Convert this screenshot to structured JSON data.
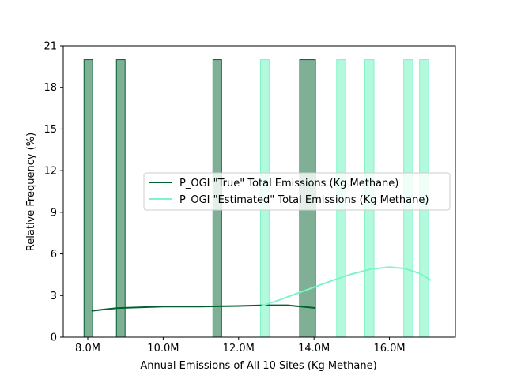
{
  "chart_data": {
    "type": "bar",
    "xlabel": "Annual Emissions of All 10 Sites (Kg Methane)",
    "ylabel": "Relative Frequency (%)",
    "xlim": [
      7.35,
      17.75
    ],
    "ylim": [
      0,
      21
    ],
    "x_ticks": [
      {
        "value": 8.0,
        "label": "8.0M"
      },
      {
        "value": 10.0,
        "label": "10.0M"
      },
      {
        "value": 12.0,
        "label": "12.0M"
      },
      {
        "value": 14.0,
        "label": "14.0M"
      },
      {
        "value": 16.0,
        "label": "16.0M"
      }
    ],
    "y_ticks": [
      {
        "value": 0,
        "label": "0"
      },
      {
        "value": 3,
        "label": "3"
      },
      {
        "value": 6,
        "label": "6"
      },
      {
        "value": 9,
        "label": "9"
      },
      {
        "value": 12,
        "label": "12"
      },
      {
        "value": 15,
        "label": "15"
      },
      {
        "value": 18,
        "label": "18"
      },
      {
        "value": 21,
        "label": "21"
      }
    ],
    "legend_position": "center-right",
    "series": [
      {
        "name": "P_OGI \"True\" Total Emissions (Kg Methane)",
        "color": "#00612e",
        "bar_fill": "#7fb096",
        "bins": [
          {
            "x0": 7.9,
            "x1": 8.13,
            "value": 20
          },
          {
            "x0": 8.76,
            "x1": 8.99,
            "value": 20
          },
          {
            "x0": 11.32,
            "x1": 11.55,
            "value": 20
          },
          {
            "x0": 13.62,
            "x1": 14.04,
            "value": 20
          }
        ],
        "kde": [
          [
            8.1,
            1.9
          ],
          [
            8.8,
            2.1
          ],
          [
            10.0,
            2.2
          ],
          [
            11.0,
            2.2
          ],
          [
            12.0,
            2.25
          ],
          [
            12.7,
            2.3
          ],
          [
            13.3,
            2.3
          ],
          [
            14.05,
            2.1
          ]
        ]
      },
      {
        "name": "P_OGI \"Estimated\" Total Emissions (Kg Methane)",
        "color": "#7ff5c6",
        "bar_fill": "#b2f9dd",
        "bins": [
          {
            "x0": 12.58,
            "x1": 12.81,
            "value": 20
          },
          {
            "x0": 14.6,
            "x1": 14.84,
            "value": 20
          },
          {
            "x0": 15.35,
            "x1": 15.59,
            "value": 20
          },
          {
            "x0": 16.38,
            "x1": 16.62,
            "value": 20
          },
          {
            "x0": 16.8,
            "x1": 17.04,
            "value": 20
          }
        ],
        "kde": [
          [
            12.6,
            2.25
          ],
          [
            13.0,
            2.6
          ],
          [
            13.5,
            3.1
          ],
          [
            14.0,
            3.6
          ],
          [
            14.5,
            4.1
          ],
          [
            15.0,
            4.55
          ],
          [
            15.5,
            4.9
          ],
          [
            16.0,
            5.05
          ],
          [
            16.4,
            4.95
          ],
          [
            16.8,
            4.6
          ],
          [
            17.1,
            4.1
          ]
        ]
      }
    ]
  }
}
